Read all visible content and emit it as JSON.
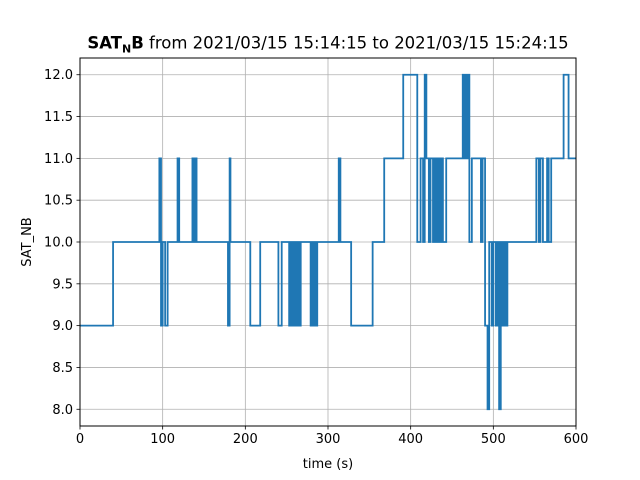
{
  "chart_data": {
    "type": "line",
    "step": true,
    "title_bold": "SAT",
    "title_subscript": "N",
    "title_bold_suffix": "B",
    "title_rest": " from 2021/03/15 15:14:15 to 2021/03/15 15:24:15",
    "xlabel": "time (s)",
    "ylabel": "SAT_NB",
    "xlim": [
      0,
      600
    ],
    "ylim": [
      7.8,
      12.2
    ],
    "xticks": [
      0,
      100,
      200,
      300,
      400,
      500,
      600
    ],
    "xtick_labels": [
      "0",
      "100",
      "200",
      "300",
      "400",
      "500",
      "600"
    ],
    "yticks": [
      8.0,
      8.5,
      9.0,
      9.5,
      10.0,
      10.5,
      11.0,
      11.5,
      12.0
    ],
    "ytick_labels": [
      "8.0",
      "8.5",
      "9.0",
      "9.5",
      "10.0",
      "10.5",
      "11.0",
      "11.5",
      "12.0"
    ],
    "grid": true,
    "series": [
      {
        "color": "#1f77b4",
        "x": [
          0,
          40,
          96,
          98,
          100,
          103,
          106,
          109,
          118,
          120,
          136,
          138,
          139,
          141,
          179,
          181,
          182,
          184,
          206,
          218,
          240,
          244,
          245,
          253,
          254,
          256,
          257,
          259,
          260,
          262,
          264,
          266,
          267,
          270,
          279,
          281,
          282,
          284,
          285,
          287,
          290,
          313,
          315,
          328,
          354,
          368,
          391,
          408,
          412,
          415,
          417,
          419,
          422,
          424,
          427,
          429,
          431,
          433,
          435,
          437,
          439,
          443,
          463,
          465,
          466,
          468,
          469,
          471,
          474,
          485,
          487,
          490,
          493,
          495,
          498,
          500,
          503,
          505,
          507,
          509,
          511,
          513,
          515,
          517,
          520,
          552,
          555,
          557,
          560,
          565,
          567,
          570,
          585,
          591,
          600
        ],
        "y": [
          9,
          10,
          11,
          9,
          10,
          9,
          10,
          10,
          11,
          10,
          11,
          10,
          11,
          10,
          9,
          11,
          10,
          10,
          9,
          10,
          9,
          10,
          10,
          9,
          10,
          9,
          10,
          9,
          10,
          9,
          10,
          9,
          10,
          10,
          9,
          10,
          9,
          10,
          9,
          10,
          10,
          11,
          10,
          9,
          10,
          11,
          12,
          10,
          11,
          10,
          12,
          11,
          10,
          11,
          10,
          11,
          10,
          11,
          10,
          11,
          10,
          11,
          12,
          11,
          12,
          11,
          12,
          10,
          11,
          10,
          11,
          9,
          8,
          10,
          9,
          10,
          9,
          10,
          8,
          10,
          9,
          10,
          9,
          10,
          10,
          11,
          10,
          11,
          10,
          11,
          10,
          11,
          12,
          11,
          11
        ]
      }
    ]
  }
}
